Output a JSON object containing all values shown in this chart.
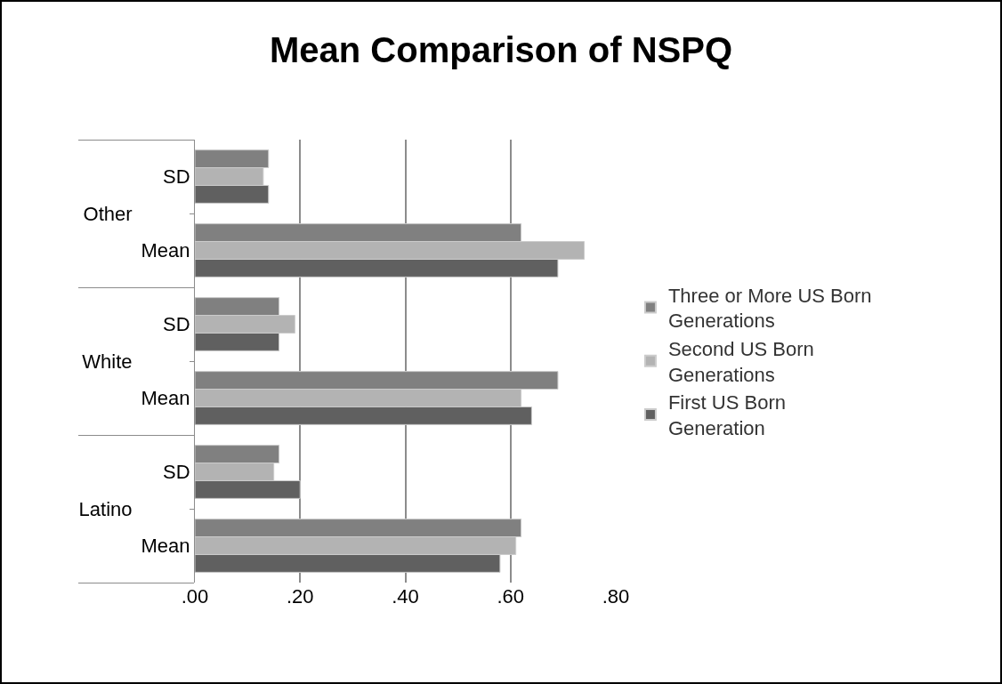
{
  "chart_data": {
    "type": "bar",
    "orientation": "horizontal",
    "title": "Mean Comparison of NSPQ",
    "categories": [
      "SD",
      "Mean",
      "SD",
      "Mean",
      "SD",
      "Mean"
    ],
    "annotations": [
      "Other",
      "White",
      "Latino"
    ],
    "series": [
      {
        "name": "Three or More US Born Generations",
        "color": "#808080",
        "values": [
          0.14,
          0.62,
          0.16,
          0.69,
          0.16,
          0.62
        ]
      },
      {
        "name": "Second US Born Generations",
        "color": "#b3b3b3",
        "values": [
          0.13,
          0.74,
          0.19,
          0.62,
          0.15,
          0.61
        ]
      },
      {
        "name": "First US Born Generation",
        "color": "#606060",
        "values": [
          0.14,
          0.69,
          0.16,
          0.64,
          0.2,
          0.58
        ]
      }
    ],
    "xlim": [
      0,
      0.8
    ],
    "xticks": [
      {
        "value": 0,
        "label": ".00"
      },
      {
        "value": 0.2,
        "label": ".20"
      },
      {
        "value": 0.4,
        "label": ".40"
      },
      {
        "value": 0.6,
        "label": ".60"
      },
      {
        "value": 0.8,
        "label": ".80"
      }
    ],
    "grid": "x",
    "legend": "right"
  }
}
